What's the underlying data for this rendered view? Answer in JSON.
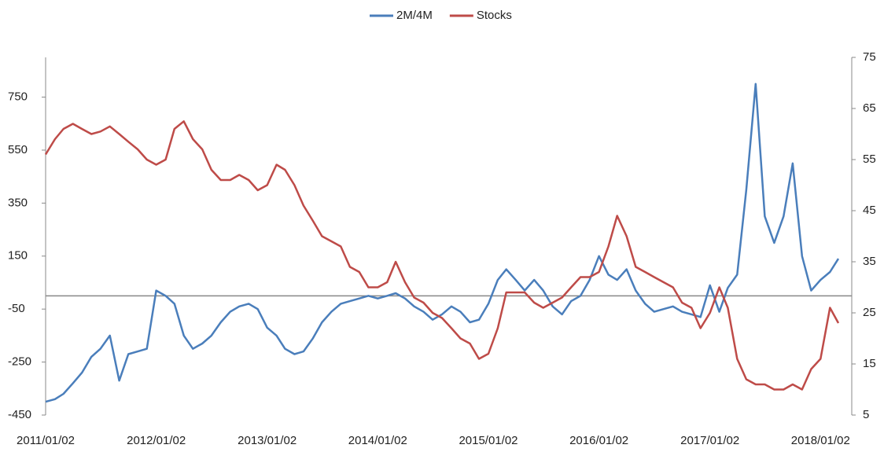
{
  "chart_data": {
    "type": "line",
    "x": [
      "2011/01/02",
      "2011/02/02",
      "2011/03/02",
      "2011/04/02",
      "2011/05/02",
      "2011/06/02",
      "2011/07/02",
      "2011/08/02",
      "2011/09/02",
      "2011/10/02",
      "2011/11/02",
      "2011/12/02",
      "2012/01/02",
      "2012/02/02",
      "2012/03/02",
      "2012/04/02",
      "2012/05/02",
      "2012/06/02",
      "2012/07/02",
      "2012/08/02",
      "2012/09/02",
      "2012/10/02",
      "2012/11/02",
      "2012/12/02",
      "2013/01/02",
      "2013/02/02",
      "2013/03/02",
      "2013/04/02",
      "2013/05/02",
      "2013/06/02",
      "2013/07/02",
      "2013/08/02",
      "2013/09/02",
      "2013/10/02",
      "2013/11/02",
      "2013/12/02",
      "2014/01/02",
      "2014/02/02",
      "2014/03/02",
      "2014/04/02",
      "2014/05/02",
      "2014/06/02",
      "2014/07/02",
      "2014/08/02",
      "2014/09/02",
      "2014/10/02",
      "2014/11/02",
      "2014/12/02",
      "2015/01/02",
      "2015/02/02",
      "2015/03/02",
      "2015/04/02",
      "2015/05/02",
      "2015/06/02",
      "2015/07/02",
      "2015/08/02",
      "2015/09/02",
      "2015/10/02",
      "2015/11/02",
      "2015/12/02",
      "2016/01/02",
      "2016/02/02",
      "2016/03/02",
      "2016/04/02",
      "2016/05/02",
      "2016/06/02",
      "2016/07/02",
      "2016/08/02",
      "2016/09/02",
      "2016/10/02",
      "2016/11/02",
      "2016/12/02",
      "2017/01/02",
      "2017/02/02",
      "2017/03/02",
      "2017/04/02",
      "2017/05/02",
      "2017/06/02",
      "2017/07/02",
      "2017/08/02",
      "2017/09/02",
      "2017/10/02",
      "2017/11/02",
      "2017/12/02",
      "2018/01/02",
      "2018/02/02",
      "2018/03/02"
    ],
    "series": [
      {
        "name": "2M/4M",
        "color": "#4a7ebb",
        "values": [
          -400,
          -390,
          -370,
          -330,
          -290,
          -230,
          -200,
          -150,
          -320,
          -220,
          -210,
          -200,
          20,
          0,
          -30,
          -150,
          -200,
          -180,
          -150,
          -100,
          -60,
          -40,
          -30,
          -50,
          -120,
          -150,
          -200,
          -220,
          -210,
          -160,
          -100,
          -60,
          -30,
          -20,
          -10,
          0,
          -10,
          0,
          10,
          -10,
          -40,
          -60,
          -90,
          -70,
          -40,
          -60,
          -100,
          -90,
          -30,
          60,
          100,
          60,
          20,
          60,
          20,
          -40,
          -70,
          -20,
          0,
          60,
          150,
          80,
          60,
          100,
          20,
          -30,
          -60,
          -50,
          -40,
          -60,
          -70,
          -80,
          40,
          -60,
          30,
          80,
          400,
          800,
          300,
          200,
          300,
          500,
          150,
          20,
          60,
          90,
          140
        ]
      },
      {
        "name": "Stocks",
        "color": "#be4b48",
        "axis": "y2",
        "values": [
          56,
          59,
          61,
          62,
          61,
          60,
          60.5,
          61.5,
          60,
          58.5,
          57,
          55,
          54,
          55,
          61,
          62.5,
          59,
          57,
          53,
          51,
          51,
          52,
          51,
          49,
          50,
          54,
          53,
          50,
          46,
          43,
          40,
          39,
          38,
          34,
          33,
          30,
          30,
          31,
          35,
          31,
          28,
          27,
          25,
          24,
          22,
          20,
          19,
          16,
          17,
          22,
          29,
          29,
          29,
          27,
          26,
          27,
          28,
          30,
          32,
          32,
          33,
          38,
          44,
          40,
          34,
          33,
          32,
          31,
          30,
          27,
          26,
          22,
          25,
          30,
          26,
          16,
          12,
          11,
          11,
          10,
          10,
          11,
          10,
          14,
          16,
          26,
          23
        ]
      }
    ],
    "xlim": [
      "2011/01/02",
      "2018/04/15"
    ],
    "xticks": [
      "2011/01/02",
      "2012/01/02",
      "2013/01/02",
      "2014/01/02",
      "2015/01/02",
      "2016/01/02",
      "2017/01/02",
      "2018/01/02"
    ],
    "ylim": [
      -450,
      900
    ],
    "yticks": [
      -450,
      -250,
      -50,
      150,
      350,
      550,
      750
    ],
    "y2lim": [
      5,
      75
    ],
    "y2ticks": [
      5,
      15,
      25,
      35,
      45,
      55,
      65,
      75
    ],
    "legend": "top"
  }
}
